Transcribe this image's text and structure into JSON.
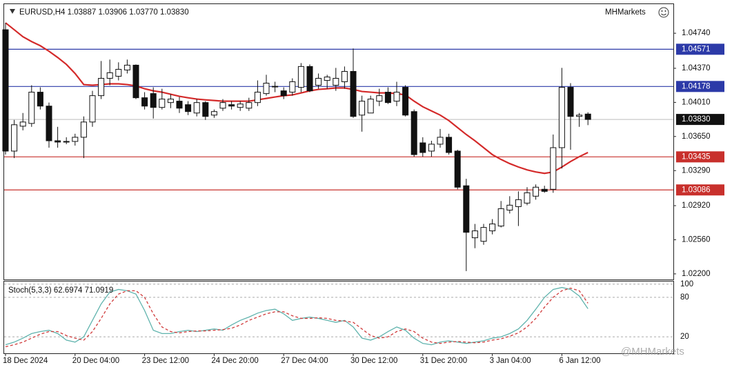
{
  "chart_data": [
    {
      "type": "candlestick",
      "title": "EURUSD,H4",
      "header_values": [
        "1.03887",
        "1.03906",
        "1.03770",
        "1.03830"
      ],
      "brand": "MHMarkets",
      "categories": [
        "18 Dec 2024",
        null,
        null,
        null,
        null,
        null,
        null,
        null,
        "20 Dec 04:00",
        null,
        null,
        null,
        null,
        null,
        null,
        null,
        "23 Dec 12:00",
        null,
        null,
        null,
        null,
        null,
        null,
        null,
        "24 Dec 20:00",
        null,
        null,
        null,
        null,
        null,
        null,
        null,
        "27 Dec 04:00",
        null,
        null,
        null,
        null,
        null,
        null,
        null,
        "30 Dec 12:00",
        null,
        null,
        null,
        null,
        null,
        null,
        null,
        "31 Dec 20:00",
        null,
        null,
        null,
        null,
        null,
        null,
        null,
        "3 Jan 04:00",
        null,
        null,
        null,
        null,
        null,
        null,
        null,
        "6 Jan 12:00",
        null,
        null,
        null
      ],
      "open": [
        1.04777,
        1.03496,
        1.03759,
        1.03788,
        1.04118,
        1.03971,
        1.03605,
        1.03591,
        1.03598,
        1.03642,
        1.03803,
        1.04081,
        1.04264,
        1.04286,
        1.04352,
        1.04403,
        1.04059,
        1.04103,
        1.03957,
        1.04008,
        1.04023,
        1.03986,
        1.03898,
        1.04008,
        1.03876,
        1.03949,
        1.03986,
        1.03957,
        1.03949,
        1.04008,
        1.04103,
        1.04176,
        1.04132,
        1.04118,
        1.04169,
        1.04389,
        1.04191,
        1.04242,
        1.04191,
        1.04228,
        1.04337,
        1.03876,
        1.03898,
        1.04023,
        1.04118,
        1.04023,
        1.04169,
        1.03913,
        1.03583,
        1.03496,
        1.03569,
        1.03642,
        1.03496,
        1.0313,
        1.02581,
        1.02544,
        1.02654,
        1.02705,
        1.02873,
        1.0291,
        1.02947,
        1.0302,
        1.03093,
        1.03093,
        1.03532,
        1.04169,
        1.03862,
        1.03887
      ],
      "high": [
        1.0485,
        1.03825,
        1.03898,
        1.04191,
        1.04169,
        1.04008,
        1.03752,
        1.03642,
        1.03679,
        1.03862,
        1.04132,
        1.04447,
        1.04462,
        1.04433,
        1.04462,
        1.04411,
        1.04118,
        1.04169,
        1.04154,
        1.04096,
        1.04067,
        1.04023,
        1.04045,
        1.04023,
        1.03935,
        1.04045,
        1.04023,
        1.04023,
        1.04059,
        1.04242,
        1.04301,
        1.04228,
        1.04169,
        1.04264,
        1.04425,
        1.04411,
        1.04315,
        1.04301,
        1.04374,
        1.04389,
        1.04579,
        1.04081,
        1.04081,
        1.04154,
        1.04169,
        1.04228,
        1.04191,
        1.03935,
        1.03642,
        1.03605,
        1.0373,
        1.03679,
        1.0351,
        1.03203,
        1.02727,
        1.02727,
        1.02778,
        1.02969,
        1.0302,
        1.03071,
        1.03115,
        1.03144,
        1.0313,
        1.03671,
        1.04374,
        1.04213,
        1.03898,
        1.03906
      ],
      "low": [
        1.03459,
        1.03422,
        1.03715,
        1.03752,
        1.03935,
        1.03532,
        1.03532,
        1.03569,
        1.03554,
        1.03422,
        1.03752,
        1.04045,
        1.04191,
        1.04242,
        1.04315,
        1.04045,
        1.03935,
        1.0384,
        1.03935,
        1.03949,
        1.03898,
        1.03876,
        1.03862,
        1.03825,
        1.03847,
        1.0392,
        1.03935,
        1.0392,
        1.0392,
        1.03971,
        1.04081,
        1.04118,
        1.04045,
        1.04081,
        1.04118,
        1.04118,
        1.04154,
        1.04154,
        1.04132,
        1.04154,
        1.03847,
        1.03701,
        1.03898,
        1.03971,
        1.03993,
        1.03971,
        1.03862,
        1.03437,
        1.03437,
        1.03437,
        1.03532,
        1.03459,
        1.03093,
        1.02229,
        1.02471,
        1.02507,
        1.02617,
        1.0269,
        1.02837,
        1.02705,
        1.02925,
        1.02983,
        1.03056,
        1.03056,
        1.03313,
        1.0351,
        1.03752,
        1.0377
      ],
      "close": [
        1.03496,
        1.03774,
        1.03803,
        1.04118,
        1.03971,
        1.03605,
        1.03591,
        1.03598,
        1.03642,
        1.03803,
        1.04081,
        1.04264,
        1.04323,
        1.04359,
        1.04403,
        1.04059,
        1.03971,
        1.03957,
        1.04045,
        1.04045,
        1.03949,
        1.03913,
        1.04008,
        1.03862,
        1.03913,
        1.04008,
        1.03971,
        1.03993,
        1.04008,
        1.04118,
        1.04213,
        1.0418,
        1.04081,
        1.04228,
        1.04389,
        1.04132,
        1.04264,
        1.04278,
        1.04264,
        1.04337,
        1.03862,
        1.04023,
        1.04045,
        1.04081,
        1.04008,
        1.04118,
        1.03876,
        1.03459,
        1.03481,
        1.03569,
        1.03642,
        1.03481,
        1.03115,
        1.02639,
        1.02654,
        1.0269,
        1.02727,
        1.02888,
        1.02925,
        1.02983,
        1.03056,
        1.03115,
        1.03071,
        1.03532,
        1.04169,
        1.03862,
        1.03876,
        1.0383
      ],
      "ma": {
        "color": "#d42a2a",
        "values": [
          1.0485,
          1.04777,
          1.04703,
          1.04652,
          1.04608,
          1.0455,
          1.04484,
          1.04411,
          1.04315,
          1.04198,
          1.04191,
          1.04198,
          1.04206,
          1.04206,
          1.04198,
          1.04184,
          1.04154,
          1.04132,
          1.04118,
          1.04096,
          1.04074,
          1.04059,
          1.04045,
          1.04037,
          1.0403,
          1.04023,
          1.04023,
          1.04023,
          1.04023,
          1.04037,
          1.04052,
          1.04067,
          1.04081,
          1.04089,
          1.0411,
          1.04132,
          1.04147,
          1.04154,
          1.04162,
          1.04162,
          1.04147,
          1.04125,
          1.04118,
          1.0411,
          1.0411,
          1.04103,
          1.04089,
          1.04023,
          1.03964,
          1.0392,
          1.03876,
          1.03818,
          1.03744,
          1.03671,
          1.03605,
          1.03532,
          1.03459,
          1.03408,
          1.03364,
          1.03328,
          1.03298,
          1.03276,
          1.03261,
          1.03276,
          1.03328,
          1.03386,
          1.03437,
          1.03481
        ]
      },
      "ylim": [
        1.02141,
        1.05047
      ],
      "yticks": [
        {
          "value": 1.0474,
          "label": "1.04740"
        },
        {
          "value": 1.0437,
          "label": "1.04370"
        },
        {
          "value": 1.0401,
          "label": "1.04010"
        },
        {
          "value": 1.0365,
          "label": "1.03650"
        },
        {
          "value": 1.0329,
          "label": "1.03290"
        },
        {
          "value": 1.0292,
          "label": "1.02920"
        },
        {
          "value": 1.0256,
          "label": "1.02560"
        },
        {
          "value": 1.022,
          "label": "1.02200"
        }
      ],
      "levels": [
        {
          "value": 1.04571,
          "label": "1.04571",
          "color": "#2c3aa8"
        },
        {
          "value": 1.04178,
          "label": "1.04178",
          "color": "#2c3aa8"
        },
        {
          "value": 1.0383,
          "label": "1.03830",
          "color": "#111111"
        },
        {
          "value": 1.03435,
          "label": "1.03435",
          "color": "#c8302c"
        },
        {
          "value": 1.03086,
          "label": "1.03086",
          "color": "#c8302c"
        }
      ]
    },
    {
      "type": "line",
      "title": "Stoch(5,3,3)",
      "series": [
        {
          "color": "#5fb3ad",
          "values": [
            8,
            12,
            18,
            25,
            28,
            30,
            25,
            15,
            12,
            20,
            45,
            70,
            88,
            92,
            90,
            85,
            60,
            30,
            25,
            25,
            28,
            30,
            28,
            30,
            32,
            30,
            38,
            45,
            50,
            56,
            60,
            62,
            55,
            45,
            48,
            50,
            48,
            45,
            42,
            45,
            35,
            18,
            15,
            20,
            28,
            35,
            30,
            18,
            10,
            8,
            12,
            14,
            12,
            10,
            12,
            14,
            18,
            20,
            25,
            32,
            45,
            62,
            80,
            92,
            95,
            92,
            82,
            62.6974
          ]
        },
        {
          "color": "#d03a3a",
          "dashed": true,
          "values": [
            5,
            8,
            12,
            18,
            24,
            28,
            28,
            22,
            18,
            15,
            28,
            48,
            70,
            85,
            90,
            90,
            80,
            55,
            35,
            28,
            26,
            28,
            29,
            29,
            30,
            31,
            33,
            38,
            45,
            50,
            55,
            58,
            58,
            52,
            48,
            48,
            49,
            48,
            45,
            44,
            42,
            32,
            22,
            18,
            20,
            28,
            32,
            28,
            18,
            12,
            10,
            12,
            13,
            12,
            11,
            12,
            15,
            17,
            21,
            26,
            35,
            48,
            65,
            80,
            90,
            94,
            90,
            71.0919
          ]
        }
      ],
      "ylim": [
        -5,
        104
      ],
      "yticks": [
        100,
        80,
        20
      ]
    }
  ],
  "watermark": "@MHMarkets"
}
